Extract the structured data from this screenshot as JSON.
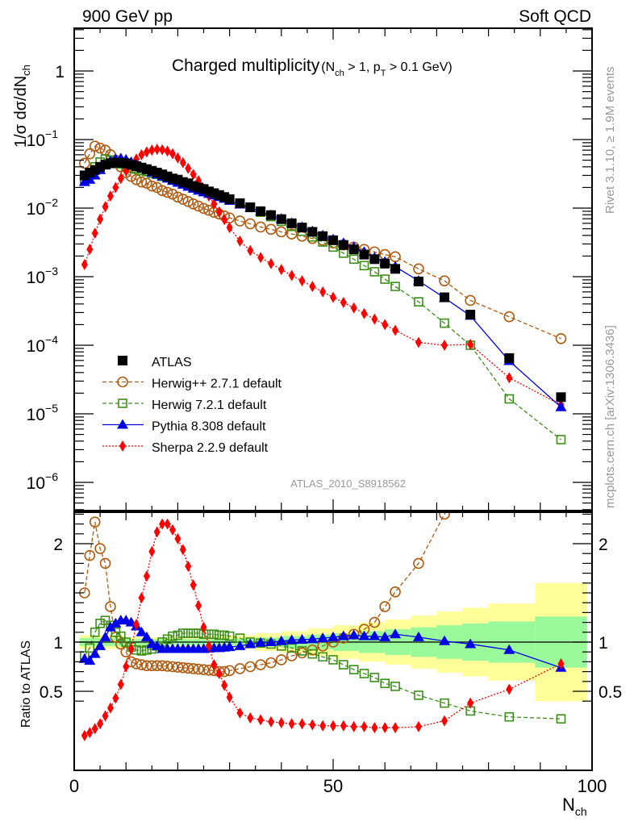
{
  "header": {
    "left_label": "900 GeV pp",
    "right_label": "Soft QCD"
  },
  "side_labels": {
    "rivet": "Rivet 3.1.10, ≥ 1.9M events",
    "mcplots": "mcplots.cern.ch [arXiv:1306.3436]"
  },
  "analysis_id": "ATLAS_2010_S8918562",
  "chart_data": [
    {
      "type": "scatter",
      "panel": "main",
      "title": "Charged multiplicity",
      "title_cuts": "(N_ch > 1, p_T > 0.1 GeV)",
      "xlabel": "N_ch",
      "ylabel": "1/σ dσ/dN_ch",
      "yscale": "log",
      "xlim": [
        0,
        100
      ],
      "ylim": [
        5e-07,
        5
      ],
      "ytick_labels": [
        "1",
        "10^-1",
        "10^-2",
        "10^-3",
        "10^-4",
        "10^-5",
        "10^-6"
      ],
      "xtick_labels": [
        "0",
        "50",
        "100"
      ],
      "legend_position": "bottom-left",
      "x": [
        2,
        3,
        4,
        5,
        6,
        7,
        8,
        9,
        10,
        11,
        12,
        13,
        14,
        15,
        16,
        17,
        18,
        19,
        20,
        21,
        22,
        23,
        24,
        25,
        26,
        27,
        28,
        29,
        30,
        32,
        34,
        36,
        38,
        40,
        42,
        44,
        46,
        48,
        50,
        52,
        54,
        56,
        58,
        60,
        62,
        66.5,
        71.5,
        76.5,
        84,
        94
      ],
      "series": [
        {
          "name": "ATLAS",
          "color": "#000000",
          "marker": "square-filled",
          "line": "none",
          "values": [
            0.03,
            0.033,
            0.036,
            0.04,
            0.043,
            0.045,
            0.046,
            0.046,
            0.045,
            0.043,
            0.041,
            0.039,
            0.037,
            0.035,
            0.033,
            0.031,
            0.029,
            0.027,
            0.026,
            0.024,
            0.023,
            0.021,
            0.02,
            0.019,
            0.0175,
            0.0165,
            0.0155,
            0.0145,
            0.0135,
            0.0118,
            0.0103,
            0.009,
            0.0079,
            0.0069,
            0.006,
            0.0052,
            0.0045,
            0.0039,
            0.0034,
            0.0029,
            0.0025,
            0.0021,
            0.0018,
            0.00155,
            0.0013,
            0.00085,
            0.0005,
            0.00028,
            6.5e-05,
            1.75e-05
          ]
        },
        {
          "name": "Herwig++ 2.7.1 default",
          "color": "#b05a10",
          "marker": "circle-open",
          "line": "dashed",
          "values": [
            0.045,
            0.062,
            0.08,
            0.075,
            0.07,
            0.06,
            0.05,
            0.04,
            0.033,
            0.029,
            0.026,
            0.024,
            0.023,
            0.021,
            0.02,
            0.018,
            0.017,
            0.016,
            0.0145,
            0.0135,
            0.0125,
            0.0115,
            0.0107,
            0.0099,
            0.0093,
            0.0087,
            0.0082,
            0.0077,
            0.0072,
            0.0065,
            0.0059,
            0.0053,
            0.0049,
            0.0045,
            0.0042,
            0.0039,
            0.0036,
            0.0034,
            0.0031,
            0.0029,
            0.0027,
            0.0025,
            0.0023,
            0.0021,
            0.00195,
            0.0013,
            0.00087,
            0.00045,
            0.00026,
            0.000125
          ]
        },
        {
          "name": "Herwig 7.2.1 default",
          "color": "#3d8f1a",
          "marker": "square-open",
          "line": "dashed",
          "values": [
            0.026,
            0.031,
            0.04,
            0.047,
            0.052,
            0.05,
            0.047,
            0.044,
            0.041,
            0.038,
            0.037,
            0.035,
            0.034,
            0.032,
            0.031,
            0.029,
            0.028,
            0.026,
            0.025,
            0.0235,
            0.0222,
            0.021,
            0.0198,
            0.0186,
            0.0175,
            0.0165,
            0.0155,
            0.0145,
            0.0135,
            0.0118,
            0.0102,
            0.0087,
            0.0075,
            0.0064,
            0.0054,
            0.0046,
            0.0038,
            0.0032,
            0.0027,
            0.0022,
            0.0018,
            0.00145,
            0.00118,
            0.00092,
            0.00072,
            0.00043,
            0.00021,
            0.0001,
            1.65e-05,
            4.2e-06
          ]
        },
        {
          "name": "Pythia 8.308 default",
          "color": "#0000e6",
          "marker": "triangle-filled",
          "line": "solid",
          "values": [
            0.024,
            0.026,
            0.03,
            0.036,
            0.042,
            0.048,
            0.052,
            0.053,
            0.051,
            0.047,
            0.043,
            0.039,
            0.036,
            0.033,
            0.031,
            0.029,
            0.027,
            0.025,
            0.0235,
            0.022,
            0.0205,
            0.0192,
            0.018,
            0.017,
            0.0162,
            0.0153,
            0.0145,
            0.0137,
            0.0128,
            0.0113,
            0.01,
            0.0089,
            0.0079,
            0.007,
            0.0061,
            0.0053,
            0.0046,
            0.004,
            0.0035,
            0.0031,
            0.0027,
            0.0023,
            0.0019,
            0.00165,
            0.0014,
            0.00087,
            0.00049,
            0.00027,
            5.9e-05,
            1.25e-05
          ]
        },
        {
          "name": "Sherpa 2.2.9 default",
          "color": "#ff0000",
          "marker": "diamond-filled",
          "line": "dotted",
          "values": [
            0.0015,
            0.0025,
            0.0043,
            0.0069,
            0.0105,
            0.015,
            0.02,
            0.027,
            0.035,
            0.043,
            0.052,
            0.06,
            0.066,
            0.07,
            0.072,
            0.071,
            0.068,
            0.062,
            0.054,
            0.046,
            0.038,
            0.031,
            0.025,
            0.019,
            0.015,
            0.0115,
            0.0088,
            0.0068,
            0.0052,
            0.0033,
            0.0024,
            0.0019,
            0.00155,
            0.00127,
            0.00104,
            0.00087,
            0.00072,
            0.0006,
            0.0005,
            0.00042,
            0.00035,
            0.00029,
            0.00024,
            0.0002,
            0.000165,
            0.00011,
            0.0001,
            0.000103,
            3.35e-05,
            1.35e-05
          ]
        }
      ]
    },
    {
      "type": "scatter",
      "panel": "ratio",
      "ylabel": "Ratio to ATLAS",
      "xlabel": "N_ch",
      "xlim": [
        0,
        100
      ],
      "ylim": [
        0.4,
        2.3
      ],
      "ytick_labels": [
        "0.5",
        "1",
        "2"
      ],
      "xtick_labels": [
        "0",
        "50",
        "100"
      ],
      "band_inner_color": "#99f99a",
      "band_outer_color": "#ffff99",
      "band_edges": [
        1,
        5,
        10,
        15,
        20,
        25,
        30,
        35,
        40,
        45,
        50,
        55,
        60,
        65,
        70,
        75,
        80,
        89,
        99
      ],
      "band_inner_halfwidth": [
        0.04,
        0.04,
        0.03,
        0.03,
        0.03,
        0.03,
        0.035,
        0.045,
        0.06,
        0.075,
        0.09,
        0.11,
        0.13,
        0.15,
        0.17,
        0.19,
        0.21,
        0.26
      ],
      "band_outer_halfwidth": [
        0.07,
        0.07,
        0.05,
        0.05,
        0.05,
        0.06,
        0.07,
        0.09,
        0.11,
        0.14,
        0.17,
        0.2,
        0.23,
        0.27,
        0.31,
        0.35,
        0.39,
        0.6
      ],
      "series": [
        {
          "name": "Herwig++ 2.7.1 default",
          "values": [
            1.5,
            1.88,
            2.22,
            1.95,
            1.8,
            1.36,
            1.05,
            0.98,
            0.9,
            0.8,
            0.78,
            0.77,
            0.76,
            0.76,
            0.76,
            0.76,
            0.755,
            0.75,
            0.745,
            0.74,
            0.735,
            0.73,
            0.725,
            0.72,
            0.715,
            0.71,
            0.7,
            0.7,
            0.71,
            0.73,
            0.75,
            0.77,
            0.79,
            0.82,
            0.86,
            0.89,
            0.92,
            0.96,
            1.0,
            1.04,
            1.08,
            1.13,
            1.2,
            1.36,
            1.51,
            1.8,
            2.3,
            2.8,
            4.0,
            7.1
          ]
        },
        {
          "name": "Herwig 7.2.1 default",
          "values": [
            0.86,
            0.94,
            1.1,
            1.19,
            1.22,
            1.17,
            1.1,
            1.06,
            1.0,
            0.95,
            0.92,
            0.91,
            0.92,
            0.93,
            0.96,
            1.0,
            1.03,
            1.06,
            1.07,
            1.09,
            1.09,
            1.09,
            1.09,
            1.08,
            1.08,
            1.08,
            1.07,
            1.07,
            1.06,
            1.04,
            1.0,
            0.99,
            0.98,
            0.96,
            0.94,
            0.91,
            0.88,
            0.85,
            0.82,
            0.77,
            0.72,
            0.68,
            0.64,
            0.58,
            0.55,
            0.46,
            0.38,
            0.3,
            0.24,
            0.22
          ]
        },
        {
          "name": "Pythia 8.308 default",
          "values": [
            0.83,
            0.81,
            0.88,
            0.96,
            1.05,
            1.15,
            1.19,
            1.22,
            1.22,
            1.2,
            1.16,
            1.1,
            1.05,
            0.98,
            0.96,
            0.93,
            0.93,
            0.93,
            0.93,
            0.93,
            0.93,
            0.93,
            0.93,
            0.93,
            0.935,
            0.94,
            0.94,
            0.945,
            0.95,
            0.96,
            0.98,
            0.995,
            1.0,
            1.01,
            1.02,
            1.025,
            1.03,
            1.04,
            1.05,
            1.06,
            1.07,
            1.06,
            1.06,
            1.05,
            1.08,
            1.05,
            1.01,
            0.98,
            0.92,
            0.74
          ]
        },
        {
          "name": "Sherpa 2.2.9 default",
          "values": [
            0.05,
            0.08,
            0.12,
            0.17,
            0.25,
            0.33,
            0.43,
            0.57,
            0.75,
            0.93,
            1.18,
            1.45,
            1.67,
            1.92,
            2.12,
            2.2,
            2.2,
            2.14,
            2.05,
            1.94,
            1.77,
            1.58,
            1.37,
            1.15,
            0.96,
            0.77,
            0.68,
            0.56,
            0.44,
            0.28,
            0.23,
            0.21,
            0.19,
            0.18,
            0.17,
            0.17,
            0.16,
            0.15,
            0.15,
            0.15,
            0.14,
            0.14,
            0.13,
            0.13,
            0.13,
            0.14,
            0.2,
            0.38,
            0.52,
            0.78
          ]
        }
      ],
      "reference_line": 1
    }
  ]
}
